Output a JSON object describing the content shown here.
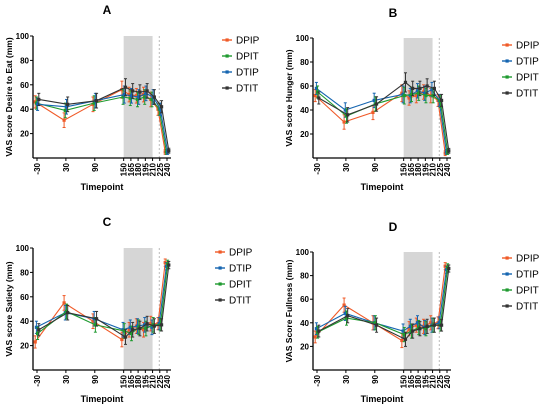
{
  "colors": {
    "DPIP": "#F05A28",
    "DPIT": "#1E9A2F",
    "DTIP": "#1565B0",
    "DTIT": "#333333",
    "shade": "#D6D6D6",
    "axis": "#000000"
  },
  "chart_data": [
    {
      "panel": "A",
      "type": "line",
      "xlabel": "Timepoint",
      "ylabel": "VAS score Desire to Eat (mm)",
      "categories": [
        "-30",
        "30",
        "90",
        "150",
        "165",
        "180",
        "195",
        "210",
        "225",
        "240"
      ],
      "x": [
        -30,
        30,
        90,
        150,
        165,
        180,
        195,
        210,
        225,
        240
      ],
      "ylim": [
        0,
        100
      ],
      "yticks": [
        20,
        40,
        60,
        80,
        100
      ],
      "shaded_region": [
        150,
        210
      ],
      "legend": [
        "DPIP",
        "DPIT",
        "DTIP",
        "DTIT"
      ],
      "series": [
        {
          "name": "DPIP",
          "values": [
            46,
            31,
            44,
            56,
            52,
            51,
            52,
            48,
            40,
            5
          ],
          "error": [
            5,
            6,
            6,
            7,
            6,
            6,
            6,
            6,
            5,
            2
          ]
        },
        {
          "name": "DPIT",
          "values": [
            45,
            39,
            45,
            50,
            49,
            48,
            50,
            48,
            40,
            5
          ],
          "error": [
            5,
            6,
            6,
            6,
            6,
            6,
            6,
            6,
            5,
            2
          ]
        },
        {
          "name": "DTIP",
          "values": [
            44,
            42,
            47,
            52,
            51,
            50,
            53,
            50,
            40,
            5
          ],
          "error": [
            5,
            6,
            6,
            7,
            6,
            6,
            6,
            6,
            5,
            2
          ]
        },
        {
          "name": "DTIT",
          "values": [
            48,
            44,
            47,
            58,
            55,
            54,
            55,
            50,
            42,
            6
          ],
          "error": [
            5,
            6,
            6,
            7,
            6,
            6,
            6,
            6,
            5,
            2
          ]
        }
      ]
    },
    {
      "panel": "B",
      "type": "line",
      "xlabel": "Timepoint",
      "ylabel": "VAS score Hunger (mm)",
      "categories": [
        "-30",
        "30",
        "90",
        "150",
        "165",
        "180",
        "195",
        "210",
        "225",
        "240"
      ],
      "x": [
        -30,
        30,
        90,
        150,
        165,
        180,
        195,
        210,
        225,
        240
      ],
      "ylim": [
        0,
        100
      ],
      "yticks": [
        20,
        40,
        60,
        80,
        100
      ],
      "shaded_region": [
        150,
        210
      ],
      "legend": [
        "DPIP",
        "DTIP",
        "DPIT",
        "DTIT"
      ],
      "series": [
        {
          "name": "DPIP",
          "values": [
            52,
            30,
            38,
            54,
            50,
            52,
            55,
            52,
            48,
            4
          ],
          "error": [
            5,
            6,
            6,
            7,
            6,
            6,
            6,
            6,
            5,
            2
          ]
        },
        {
          "name": "DTIP",
          "values": [
            58,
            40,
            48,
            53,
            52,
            56,
            54,
            57,
            48,
            5
          ],
          "error": [
            5,
            6,
            6,
            7,
            6,
            6,
            6,
            6,
            5,
            2
          ]
        },
        {
          "name": "DPIT",
          "values": [
            55,
            35,
            45,
            52,
            53,
            54,
            52,
            52,
            47,
            5
          ],
          "error": [
            5,
            6,
            6,
            7,
            6,
            6,
            6,
            6,
            5,
            2
          ]
        },
        {
          "name": "DTIT",
          "values": [
            50,
            36,
            45,
            63,
            58,
            58,
            60,
            58,
            48,
            6
          ],
          "error": [
            5,
            6,
            6,
            8,
            6,
            6,
            6,
            6,
            5,
            2
          ]
        }
      ]
    },
    {
      "panel": "C",
      "type": "line",
      "xlabel": "Timepoint",
      "ylabel": "VAS score Satiety (mm)",
      "categories": [
        "-30",
        "30",
        "90",
        "150",
        "165",
        "180",
        "195",
        "210",
        "225",
        "240"
      ],
      "x": [
        -30,
        30,
        90,
        150,
        165,
        180,
        195,
        210,
        225,
        240
      ],
      "ylim": [
        0,
        100
      ],
      "yticks": [
        20,
        40,
        60,
        80,
        100
      ],
      "shaded_region": [
        150,
        210
      ],
      "legend": [
        "DPIP",
        "DTIP",
        "DPIT",
        "DTIT"
      ],
      "series": [
        {
          "name": "DPIP",
          "values": [
            23,
            55,
            40,
            25,
            33,
            36,
            33,
            38,
            38,
            88
          ],
          "error": [
            5,
            6,
            6,
            6,
            6,
            6,
            6,
            6,
            5,
            3
          ]
        },
        {
          "name": "DTIP",
          "values": [
            35,
            47,
            42,
            33,
            35,
            36,
            37,
            35,
            38,
            85
          ],
          "error": [
            5,
            6,
            6,
            6,
            6,
            6,
            6,
            6,
            5,
            3
          ]
        },
        {
          "name": "DPIT",
          "values": [
            30,
            48,
            37,
            32,
            30,
            35,
            34,
            37,
            37,
            87
          ],
          "error": [
            5,
            6,
            6,
            6,
            6,
            6,
            6,
            6,
            5,
            3
          ]
        },
        {
          "name": "DTIT",
          "values": [
            33,
            47,
            42,
            27,
            33,
            34,
            38,
            36,
            37,
            86
          ],
          "error": [
            5,
            6,
            6,
            6,
            6,
            6,
            6,
            6,
            5,
            3
          ]
        }
      ]
    },
    {
      "panel": "D",
      "type": "line",
      "xlabel": "Timepoint",
      "ylabel": "VAS Score Fullness (mm)",
      "categories": [
        "-30",
        "30",
        "90",
        "150",
        "165",
        "180",
        "195",
        "210",
        "225",
        "240"
      ],
      "x": [
        -30,
        30,
        90,
        150,
        165,
        180,
        195,
        210,
        225,
        240
      ],
      "ylim": [
        0,
        100
      ],
      "yticks": [
        20,
        40,
        60,
        80,
        100
      ],
      "shaded_region": [
        150,
        210
      ],
      "legend": [
        "DPIP",
        "DTIP",
        "DPIT",
        "DTIT"
      ],
      "series": [
        {
          "name": "DPIP",
          "values": [
            28,
            55,
            40,
            25,
            35,
            38,
            37,
            40,
            40,
            88
          ],
          "error": [
            5,
            6,
            6,
            6,
            6,
            6,
            6,
            6,
            5,
            3
          ]
        },
        {
          "name": "DTIP",
          "values": [
            35,
            48,
            40,
            33,
            37,
            40,
            36,
            38,
            40,
            85
          ],
          "error": [
            5,
            6,
            6,
            6,
            6,
            6,
            6,
            6,
            5,
            3
          ]
        },
        {
          "name": "DPIT",
          "values": [
            32,
            44,
            40,
            30,
            33,
            36,
            35,
            38,
            38,
            87
          ],
          "error": [
            5,
            6,
            6,
            6,
            6,
            6,
            6,
            6,
            5,
            3
          ]
        },
        {
          "name": "DTIT",
          "values": [
            33,
            46,
            38,
            26,
            33,
            35,
            37,
            38,
            38,
            86
          ],
          "error": [
            5,
            6,
            6,
            6,
            6,
            6,
            6,
            6,
            5,
            3
          ]
        }
      ]
    }
  ]
}
